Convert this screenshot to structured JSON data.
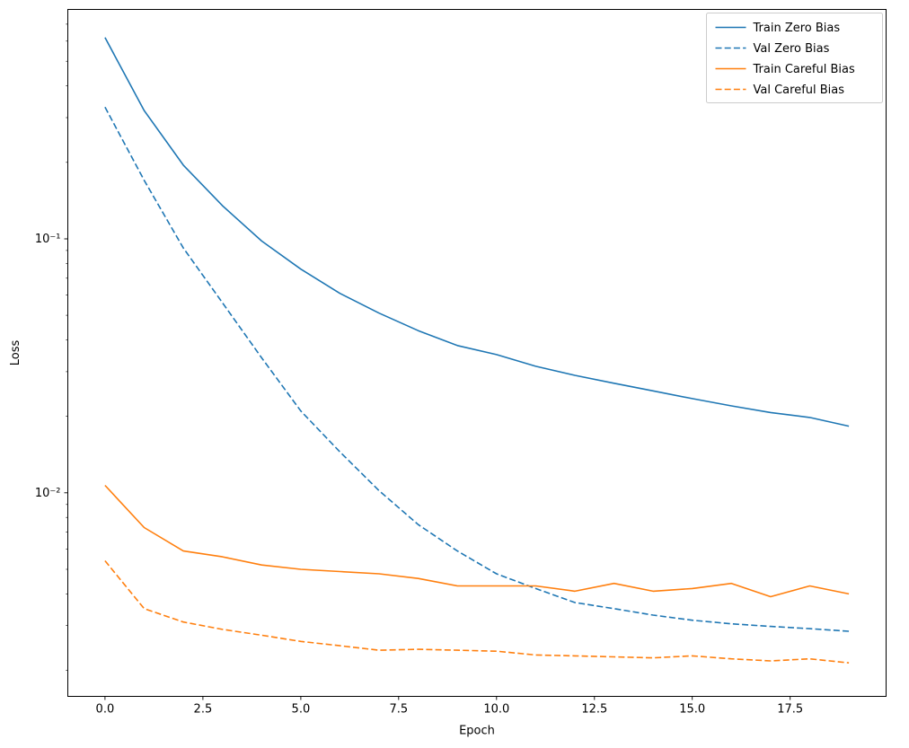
{
  "chart_data": {
    "type": "line",
    "title": "",
    "xlabel": "Epoch",
    "ylabel": "Loss",
    "y_scale": "log",
    "xlim": [
      -0.95,
      19.95
    ],
    "ylim": [
      0.00158,
      0.8
    ],
    "xticks": [
      0.0,
      2.5,
      5.0,
      7.5,
      10.0,
      12.5,
      15.0,
      17.5
    ],
    "xtick_labels": [
      "0.0",
      "2.5",
      "5.0",
      "7.5",
      "10.0",
      "12.5",
      "15.0",
      "17.5"
    ],
    "yticks": [
      0.1,
      0.01
    ],
    "ytick_labels": [
      "10⁻¹",
      "10⁻²"
    ],
    "grid": false,
    "legend_position": "upper right",
    "x": [
      0,
      1,
      2,
      3,
      4,
      5,
      6,
      7,
      8,
      9,
      10,
      11,
      12,
      13,
      14,
      15,
      16,
      17,
      18,
      19
    ],
    "series": [
      {
        "name": "Train Zero Bias",
        "color": "#1f77b4",
        "style": "solid",
        "values": [
          0.62,
          0.32,
          0.195,
          0.135,
          0.098,
          0.076,
          0.061,
          0.051,
          0.0435,
          0.038,
          0.035,
          0.0315,
          0.029,
          0.027,
          0.0252,
          0.0235,
          0.022,
          0.0207,
          0.0198,
          0.0183
        ]
      },
      {
        "name": "Val Zero Bias",
        "color": "#1f77b4",
        "style": "dashed",
        "values": [
          0.33,
          0.17,
          0.092,
          0.056,
          0.034,
          0.021,
          0.0145,
          0.0102,
          0.0075,
          0.0059,
          0.0048,
          0.0042,
          0.0037,
          0.0035,
          0.0033,
          0.00315,
          0.00305,
          0.00298,
          0.00292,
          0.00285
        ]
      },
      {
        "name": "Train Careful Bias",
        "color": "#ff7f0e",
        "style": "solid",
        "values": [
          0.0107,
          0.0073,
          0.0059,
          0.0056,
          0.0052,
          0.005,
          0.0049,
          0.0048,
          0.0046,
          0.0043,
          0.0043,
          0.0043,
          0.0041,
          0.0044,
          0.0041,
          0.0042,
          0.0044,
          0.0039,
          0.0043,
          0.004
        ]
      },
      {
        "name": "Val Careful Bias",
        "color": "#ff7f0e",
        "style": "dashed",
        "values": [
          0.0054,
          0.0035,
          0.0031,
          0.0029,
          0.00275,
          0.0026,
          0.0025,
          0.0024,
          0.00242,
          0.0024,
          0.00238,
          0.0023,
          0.00228,
          0.00226,
          0.00224,
          0.00228,
          0.00222,
          0.00218,
          0.00222,
          0.00214
        ]
      }
    ]
  }
}
